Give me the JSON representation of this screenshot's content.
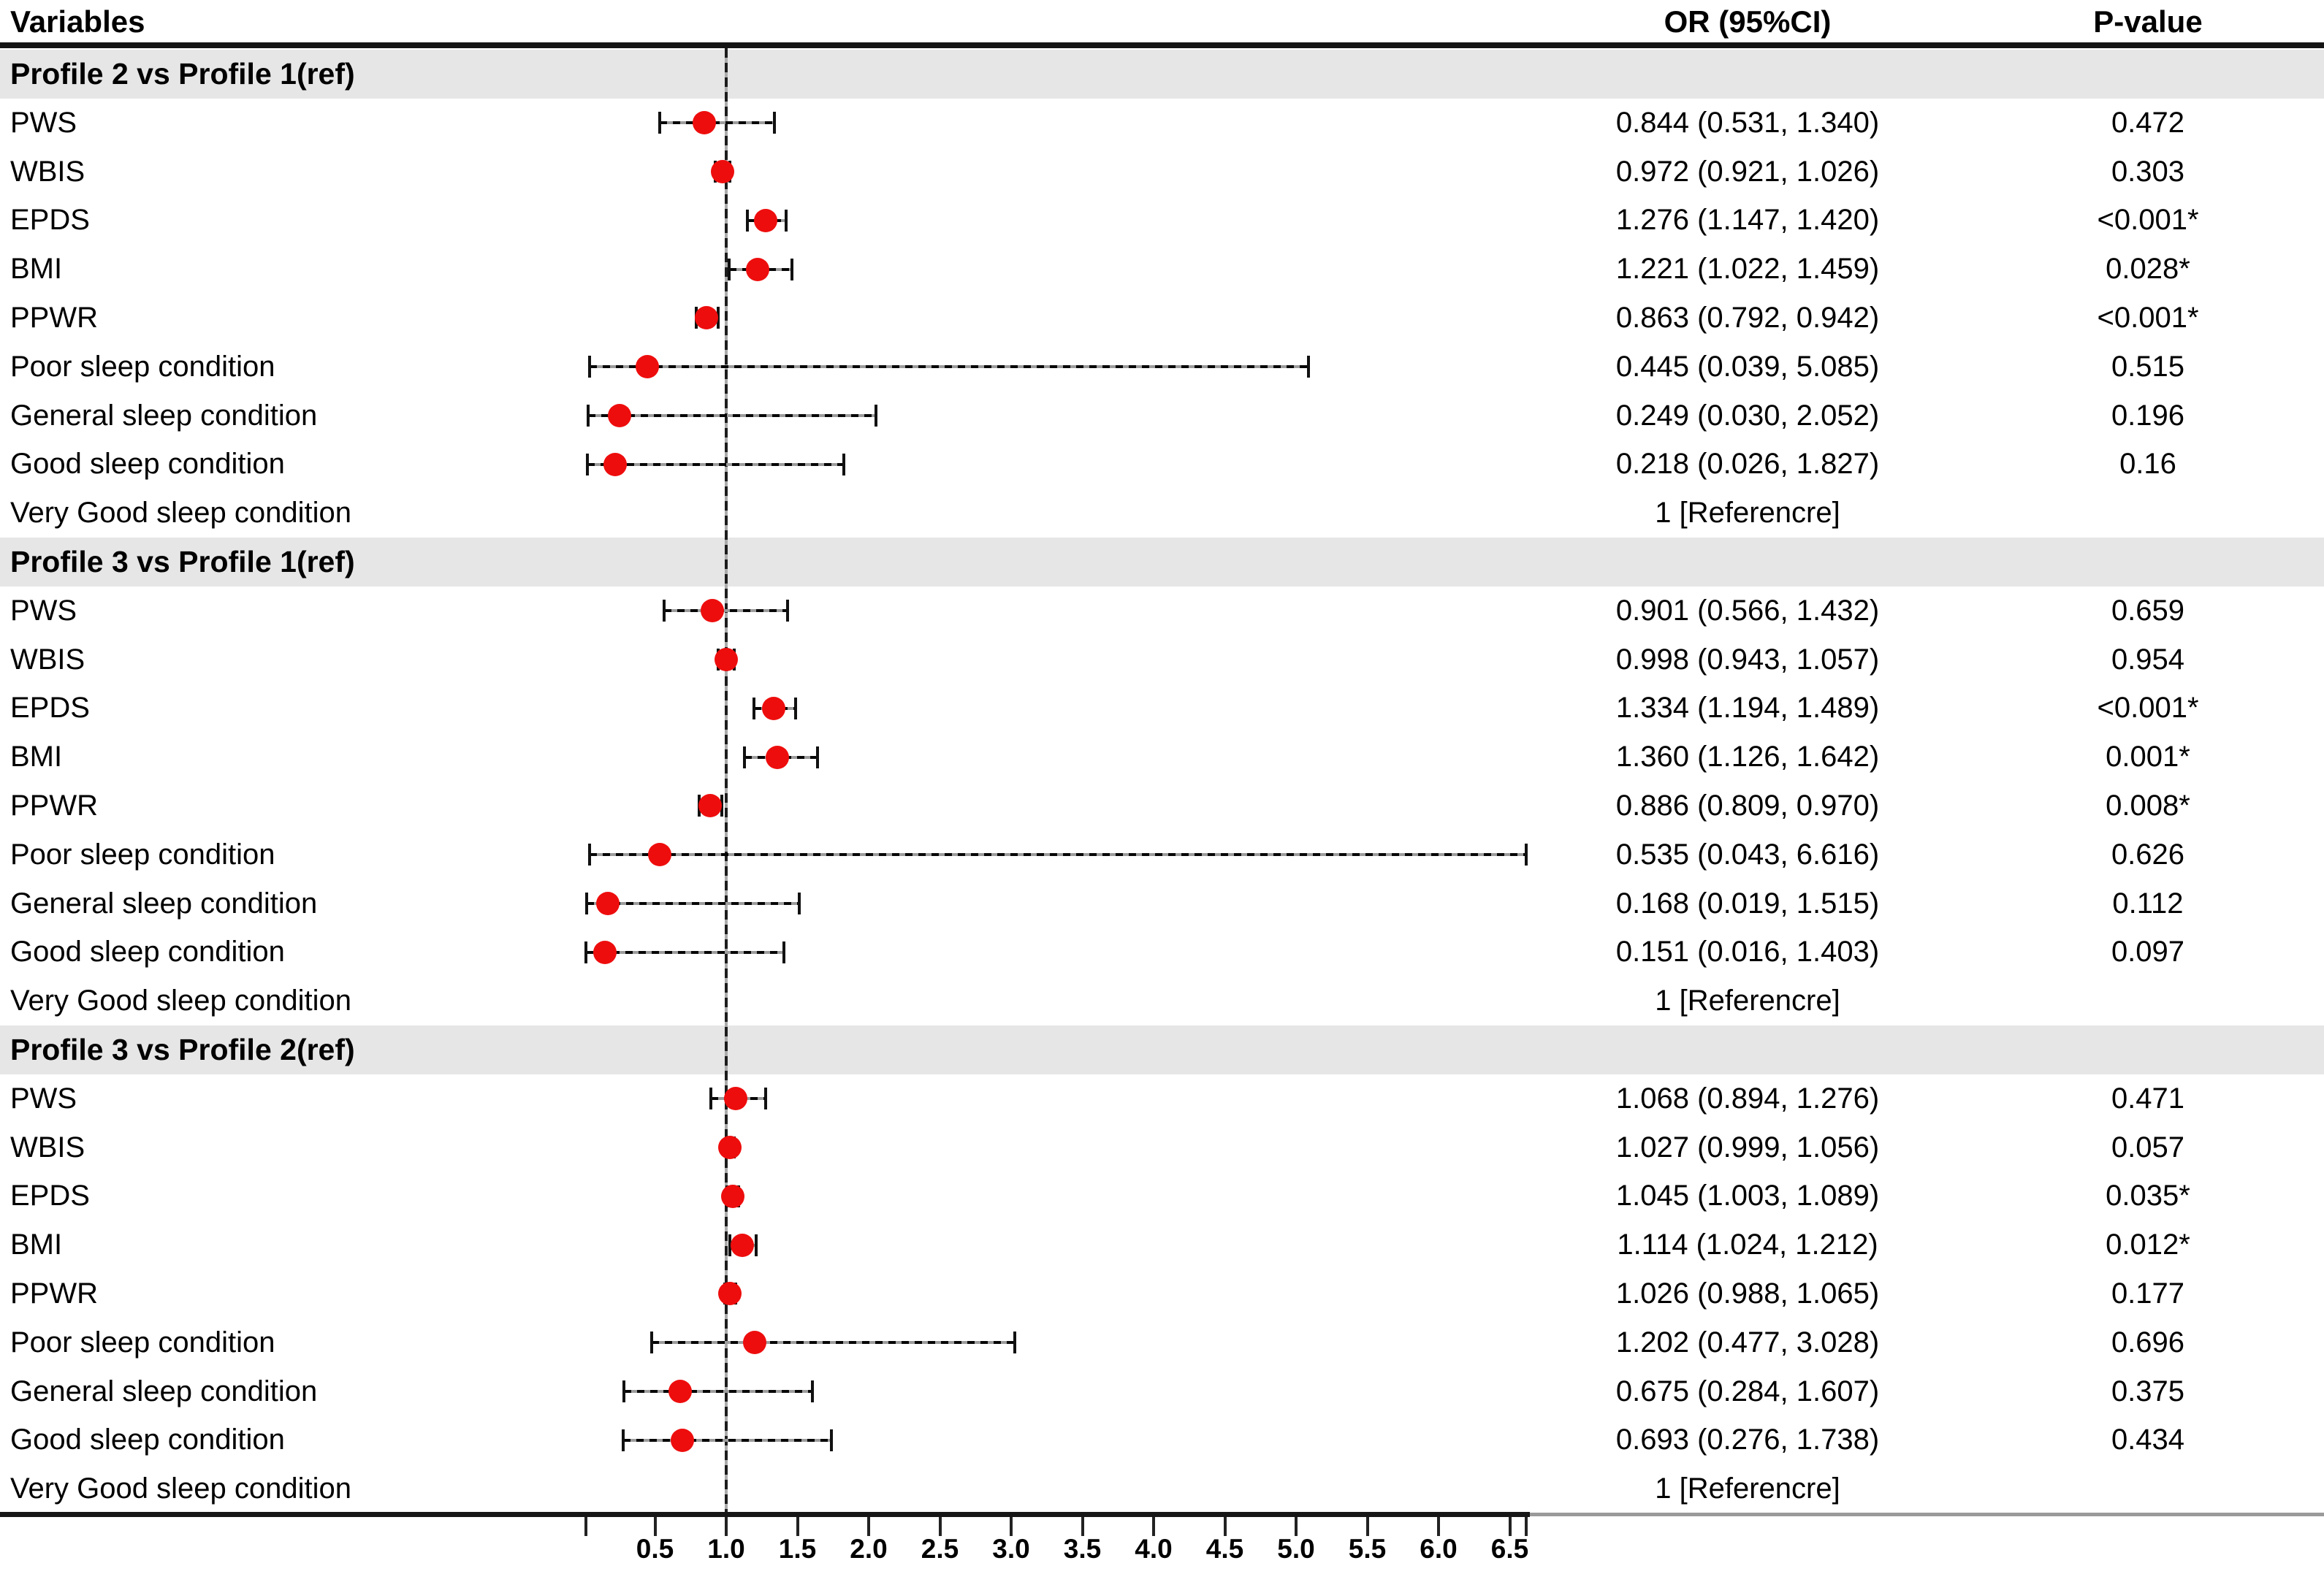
{
  "header": {
    "variables": "Variables",
    "or_ci": "OR (95%CI)",
    "p_value": "P-value"
  },
  "colors": {
    "marker": "#ee0d0d",
    "section_band": "#e6e6e6",
    "line": "#111111"
  },
  "chart_data": {
    "type": "scatter",
    "subtype": "forest-plot",
    "title": "",
    "columns": [
      "Variables",
      "OR (95%CI)",
      "P-value"
    ],
    "axis": {
      "orientation": "horizontal",
      "range": [
        0.016,
        6.616
      ],
      "reference_value": 1.0,
      "ticks": [
        "0.5",
        "1.0",
        "1.5",
        "2.0",
        "2.5",
        "3.0",
        "3.5",
        "4.0",
        "4.5",
        "5.0",
        "5.5",
        "6.0",
        "6.5"
      ],
      "grid": false
    },
    "sections": [
      {
        "header": "Profile 2 vs Profile 1(ref)",
        "rows": [
          {
            "label": "PWS",
            "or": 0.844,
            "lo": 0.531,
            "hi": 1.34,
            "or_text": "0.844 (0.531, 1.340)",
            "p": "0.472",
            "ref": false
          },
          {
            "label": "WBIS",
            "or": 0.972,
            "lo": 0.921,
            "hi": 1.026,
            "or_text": "0.972 (0.921, 1.026)",
            "p": "0.303",
            "ref": false
          },
          {
            "label": "EPDS",
            "or": 1.276,
            "lo": 1.147,
            "hi": 1.42,
            "or_text": "1.276 (1.147, 1.420)",
            "p": "<0.001*",
            "ref": false
          },
          {
            "label": "BMI",
            "or": 1.221,
            "lo": 1.022,
            "hi": 1.459,
            "or_text": "1.221 (1.022, 1.459)",
            "p": "0.028*",
            "ref": false
          },
          {
            "label": "PPWR",
            "or": 0.863,
            "lo": 0.792,
            "hi": 0.942,
            "or_text": "0.863 (0.792, 0.942)",
            "p": "<0.001*",
            "ref": false
          },
          {
            "label": "Poor sleep condition",
            "or": 0.445,
            "lo": 0.039,
            "hi": 5.085,
            "or_text": "0.445 (0.039, 5.085)",
            "p": "0.515",
            "ref": false
          },
          {
            "label": "General sleep condition",
            "or": 0.249,
            "lo": 0.03,
            "hi": 2.052,
            "or_text": "0.249 (0.030, 2.052)",
            "p": "0.196",
            "ref": false
          },
          {
            "label": "Good sleep condition",
            "or": 0.218,
            "lo": 0.026,
            "hi": 1.827,
            "or_text": "0.218 (0.026, 1.827)",
            "p": "0.16",
            "ref": false
          },
          {
            "label": "Very Good sleep condition",
            "or": 1,
            "lo": null,
            "hi": null,
            "or_text": "1 [Referencre]",
            "p": "",
            "ref": true
          }
        ]
      },
      {
        "header": "Profile 3 vs Profile 1(ref)",
        "rows": [
          {
            "label": "PWS",
            "or": 0.901,
            "lo": 0.566,
            "hi": 1.432,
            "or_text": "0.901 (0.566, 1.432)",
            "p": "0.659",
            "ref": false
          },
          {
            "label": "WBIS",
            "or": 0.998,
            "lo": 0.943,
            "hi": 1.057,
            "or_text": "0.998 (0.943, 1.057)",
            "p": "0.954",
            "ref": false
          },
          {
            "label": "EPDS",
            "or": 1.334,
            "lo": 1.194,
            "hi": 1.489,
            "or_text": "1.334 (1.194, 1.489)",
            "p": "<0.001*",
            "ref": false
          },
          {
            "label": "BMI",
            "or": 1.36,
            "lo": 1.126,
            "hi": 1.642,
            "or_text": "1.360 (1.126, 1.642)",
            "p": "0.001*",
            "ref": false
          },
          {
            "label": "PPWR",
            "or": 0.886,
            "lo": 0.809,
            "hi": 0.97,
            "or_text": "0.886 (0.809, 0.970)",
            "p": "0.008*",
            "ref": false
          },
          {
            "label": "Poor sleep condition",
            "or": 0.535,
            "lo": 0.043,
            "hi": 6.616,
            "or_text": "0.535 (0.043, 6.616)",
            "p": "0.626",
            "ref": false
          },
          {
            "label": "General sleep condition",
            "or": 0.168,
            "lo": 0.019,
            "hi": 1.515,
            "or_text": "0.168 (0.019, 1.515)",
            "p": "0.112",
            "ref": false
          },
          {
            "label": "Good sleep condition",
            "or": 0.151,
            "lo": 0.016,
            "hi": 1.403,
            "or_text": "0.151 (0.016, 1.403)",
            "p": "0.097",
            "ref": false
          },
          {
            "label": "Very Good sleep condition",
            "or": 1,
            "lo": null,
            "hi": null,
            "or_text": "1 [Referencre]",
            "p": "",
            "ref": true
          }
        ]
      },
      {
        "header": "Profile 3 vs Profile 2(ref)",
        "rows": [
          {
            "label": "PWS",
            "or": 1.068,
            "lo": 0.894,
            "hi": 1.276,
            "or_text": "1.068 (0.894, 1.276)",
            "p": "0.471",
            "ref": false
          },
          {
            "label": "WBIS",
            "or": 1.027,
            "lo": 0.999,
            "hi": 1.056,
            "or_text": "1.027 (0.999, 1.056)",
            "p": "0.057",
            "ref": false
          },
          {
            "label": "EPDS",
            "or": 1.045,
            "lo": 1.003,
            "hi": 1.089,
            "or_text": "1.045 (1.003, 1.089)",
            "p": "0.035*",
            "ref": false
          },
          {
            "label": "BMI",
            "or": 1.114,
            "lo": 1.024,
            "hi": 1.212,
            "or_text": "1.114 (1.024, 1.212)",
            "p": "0.012*",
            "ref": false
          },
          {
            "label": "PPWR",
            "or": 1.026,
            "lo": 0.988,
            "hi": 1.065,
            "or_text": "1.026 (0.988, 1.065)",
            "p": "0.177",
            "ref": false
          },
          {
            "label": "Poor sleep condition",
            "or": 1.202,
            "lo": 0.477,
            "hi": 3.028,
            "or_text": "1.202 (0.477, 3.028)",
            "p": "0.696",
            "ref": false
          },
          {
            "label": "General sleep condition",
            "or": 0.675,
            "lo": 0.284,
            "hi": 1.607,
            "or_text": "0.675 (0.284, 1.607)",
            "p": "0.375",
            "ref": false
          },
          {
            "label": "Good sleep condition",
            "or": 0.693,
            "lo": 0.276,
            "hi": 1.738,
            "or_text": "0.693 (0.276, 1.738)",
            "p": "0.434",
            "ref": false
          },
          {
            "label": "Very Good sleep condition",
            "or": 1,
            "lo": null,
            "hi": null,
            "or_text": "1 [Referencre]",
            "p": "",
            "ref": true
          }
        ]
      }
    ]
  }
}
